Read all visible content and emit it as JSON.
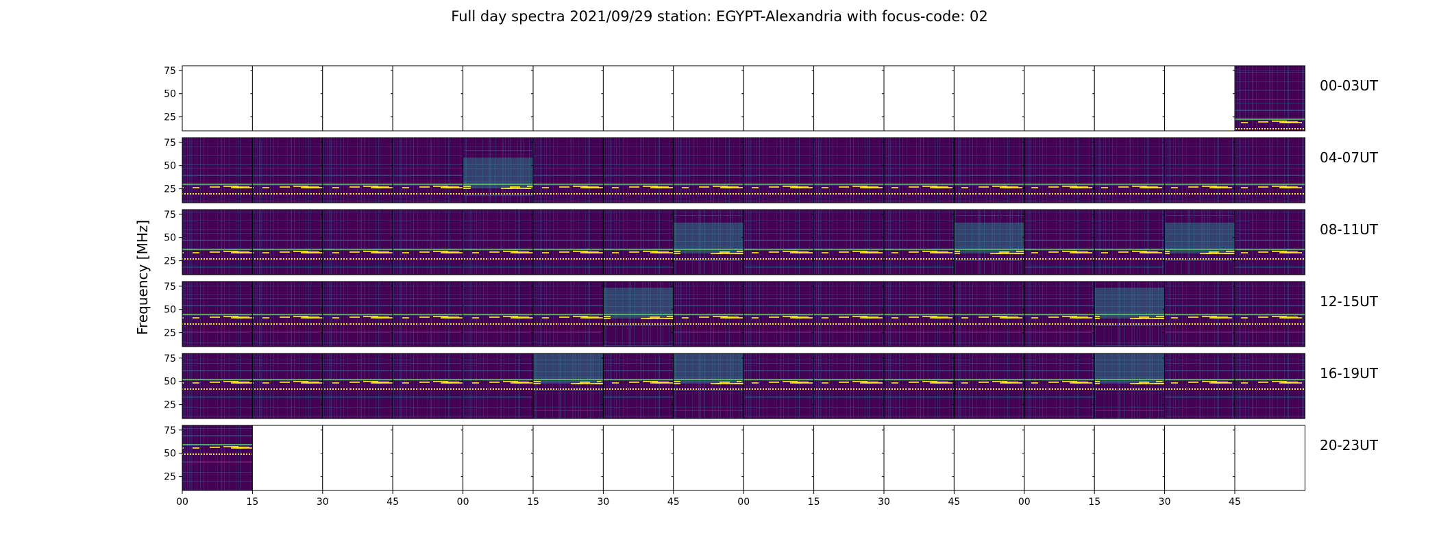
{
  "chart_data": {
    "type": "heatmap",
    "title": "Full day spectra 2021/09/29 station: EGYPT-Alexandria with focus-code: 02",
    "ylabel": "Frequency [MHz]",
    "xlabel": "",
    "ylim": [
      10,
      80
    ],
    "yticks": [
      25,
      50,
      75
    ],
    "xticks": [
      "00",
      "15",
      "30",
      "45",
      "00",
      "15",
      "30",
      "45",
      "00",
      "15",
      "30",
      "45",
      "00",
      "15",
      "30",
      "45"
    ],
    "rows": [
      {
        "label": "00-03UT",
        "panels": [
          0,
          0,
          0,
          0,
          0,
          0,
          0,
          0,
          0,
          0,
          0,
          0,
          0,
          0,
          0,
          1
        ],
        "bursts": []
      },
      {
        "label": "04-07UT",
        "panels": [
          1,
          1,
          1,
          1,
          1,
          1,
          1,
          1,
          1,
          1,
          1,
          1,
          1,
          1,
          1,
          1
        ],
        "bursts": [
          4
        ]
      },
      {
        "label": "08-11UT",
        "panels": [
          1,
          1,
          1,
          1,
          1,
          1,
          1,
          1,
          1,
          1,
          1,
          1,
          1,
          1,
          1,
          1
        ],
        "bursts": [
          7,
          11,
          14
        ]
      },
      {
        "label": "12-15UT",
        "panels": [
          1,
          1,
          1,
          1,
          1,
          1,
          1,
          1,
          1,
          1,
          1,
          1,
          1,
          1,
          1,
          1
        ],
        "bursts": [
          6,
          13
        ]
      },
      {
        "label": "16-19UT",
        "panels": [
          1,
          1,
          1,
          1,
          1,
          1,
          1,
          1,
          1,
          1,
          1,
          1,
          1,
          1,
          1,
          1
        ],
        "bursts": [
          5,
          7,
          13
        ]
      },
      {
        "label": "20-23UT",
        "panels": [
          1,
          0,
          0,
          0,
          0,
          0,
          0,
          0,
          0,
          0,
          0,
          0,
          0,
          0,
          0,
          0
        ],
        "bursts": []
      }
    ],
    "colormap": [
      "#440154",
      "#3b528b",
      "#21918c",
      "#5ec962",
      "#fde725"
    ],
    "grid": false,
    "legend": "none"
  }
}
